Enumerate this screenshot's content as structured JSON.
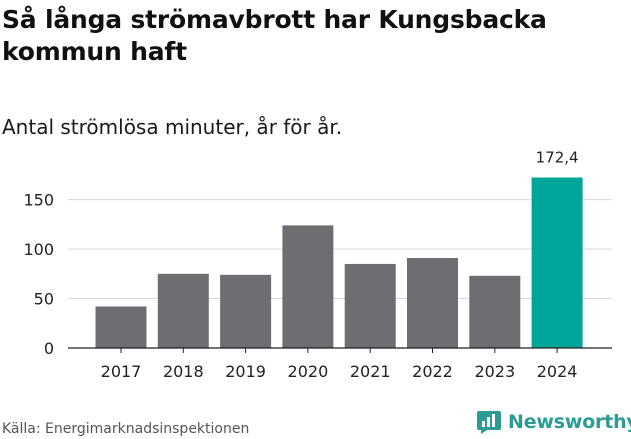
{
  "chart_data": {
    "type": "bar",
    "title": "Så långa strömavbrott har Kungsbacka kommun haft",
    "subtitle": "Antal strömlösa minuter, år för år.",
    "categories": [
      "2017",
      "2018",
      "2019",
      "2020",
      "2021",
      "2022",
      "2023",
      "2024"
    ],
    "values": [
      42,
      75,
      74,
      124,
      85,
      91,
      73,
      172.4
    ],
    "value_labels": [
      "",
      "",
      "",
      "",
      "",
      "",
      "",
      "172,4"
    ],
    "highlight_index": 7,
    "xlabel": "",
    "ylabel": "",
    "ylim": [
      0,
      180
    ],
    "yticks": [
      0,
      50,
      100,
      150
    ],
    "ytick_labels": [
      "0",
      "50",
      "100",
      "150"
    ],
    "grid": true,
    "colors": {
      "bar": "#6e6d72",
      "highlight": "#00a59a",
      "grid": "#d9d9d9",
      "axis": "#222222"
    }
  },
  "source": "Källa: Energimarknadsinspektionen",
  "brand": {
    "name": "Newsworthy",
    "icon": "newsworthy-logo-icon",
    "color": "#2b9c94"
  }
}
